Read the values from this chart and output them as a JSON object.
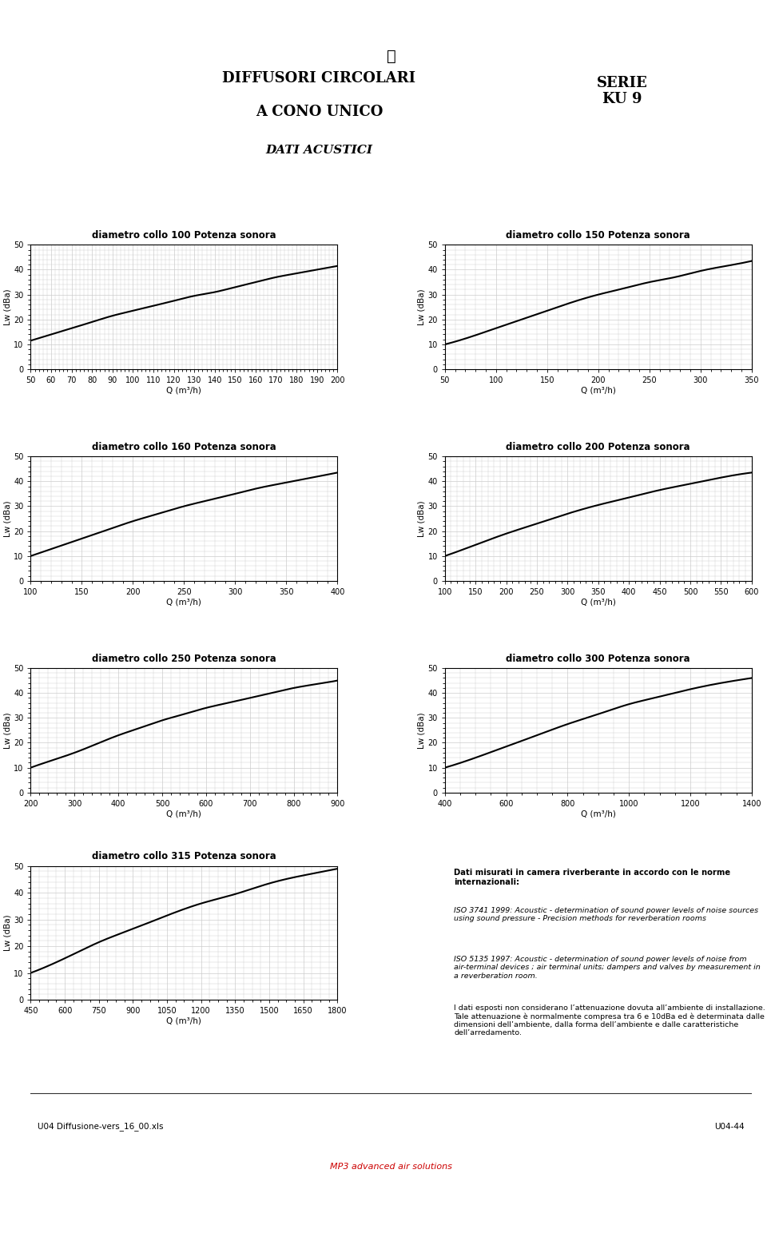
{
  "title_line1": "DIFFUSORI CIRCOLARI",
  "title_line2": "A CONO UNICO",
  "title_line3": "DATI ACUSTICI",
  "serie_label": "SERIE\nKU 9",
  "bg_color": "#ffffff",
  "charts": [
    {
      "title": "diametro collo 100 Potenza sonora",
      "xlabel": "Q (m³/h)",
      "ylabel": "Lw (dBa)",
      "xlim": [
        50,
        200
      ],
      "ylim": [
        0,
        50
      ],
      "xticks": [
        50,
        60,
        70,
        80,
        90,
        100,
        110,
        120,
        130,
        140,
        150,
        160,
        170,
        180,
        190,
        200
      ],
      "yticks": [
        0,
        10,
        20,
        30,
        40,
        50
      ],
      "x": [
        50,
        60,
        70,
        80,
        90,
        100,
        110,
        120,
        130,
        140,
        150,
        160,
        170,
        180,
        190,
        200
      ],
      "y": [
        11.5,
        14.0,
        16.5,
        19.0,
        21.5,
        23.5,
        25.5,
        27.5,
        29.5,
        31.0,
        33.0,
        35.0,
        37.0,
        38.5,
        40.0,
        41.5
      ]
    },
    {
      "title": "diametro collo 150 Potenza sonora",
      "xlabel": "Q (m³/h)",
      "ylabel": "Lw (dBa)",
      "xlim": [
        50,
        350
      ],
      "ylim": [
        0,
        50
      ],
      "xticks": [
        50,
        100,
        150,
        200,
        250,
        300,
        350
      ],
      "yticks": [
        0,
        10,
        20,
        30,
        40,
        50
      ],
      "x": [
        50,
        75,
        100,
        125,
        150,
        175,
        200,
        225,
        250,
        275,
        300,
        325,
        350
      ],
      "y": [
        10.0,
        13.0,
        16.5,
        20.0,
        23.5,
        27.0,
        30.0,
        32.5,
        35.0,
        37.0,
        39.5,
        41.5,
        43.5
      ]
    },
    {
      "title": "diametro collo 160 Potenza sonora",
      "xlabel": "Q (m³/h)",
      "ylabel": "Lw (dBa)",
      "xlim": [
        100,
        400
      ],
      "ylim": [
        0,
        50
      ],
      "xticks": [
        100,
        150,
        200,
        250,
        300,
        350,
        400
      ],
      "yticks": [
        0,
        10,
        20,
        30,
        40,
        50
      ],
      "x": [
        100,
        125,
        150,
        175,
        200,
        225,
        250,
        275,
        300,
        325,
        350,
        375,
        400
      ],
      "y": [
        10.0,
        13.5,
        17.0,
        20.5,
        24.0,
        27.0,
        30.0,
        32.5,
        35.0,
        37.5,
        39.5,
        41.5,
        43.5
      ]
    },
    {
      "title": "diametro collo 200 Potenza sonora",
      "xlabel": "Q (m³/h)",
      "ylabel": "Lw (dBa)",
      "xlim": [
        100,
        600
      ],
      "ylim": [
        0,
        50
      ],
      "xticks": [
        100,
        150,
        200,
        250,
        300,
        350,
        400,
        450,
        500,
        550,
        600
      ],
      "yticks": [
        0,
        10,
        20,
        30,
        40,
        50
      ],
      "x": [
        100,
        150,
        200,
        250,
        300,
        350,
        400,
        450,
        500,
        550,
        600
      ],
      "y": [
        10.0,
        14.5,
        19.0,
        23.0,
        27.0,
        30.5,
        33.5,
        36.5,
        39.0,
        41.5,
        43.5
      ]
    },
    {
      "title": "diametro collo 250 Potenza sonora",
      "xlabel": "Q (m³/h)",
      "ylabel": "Lw (dBa)",
      "xlim": [
        200,
        900
      ],
      "ylim": [
        0,
        50
      ],
      "xticks": [
        200,
        300,
        400,
        500,
        600,
        700,
        800,
        900
      ],
      "yticks": [
        0,
        10,
        20,
        30,
        40,
        50
      ],
      "x": [
        200,
        250,
        300,
        350,
        400,
        450,
        500,
        550,
        600,
        650,
        700,
        750,
        800,
        850,
        900
      ],
      "y": [
        10.0,
        13.0,
        16.0,
        19.5,
        23.0,
        26.0,
        29.0,
        31.5,
        34.0,
        36.0,
        38.0,
        40.0,
        42.0,
        43.5,
        45.0
      ]
    },
    {
      "title": "diametro collo 300 Potenza sonora",
      "xlabel": "Q (m³/h)",
      "ylabel": "Lw (dBa)",
      "xlim": [
        400,
        1400
      ],
      "ylim": [
        0,
        50
      ],
      "xticks": [
        400,
        600,
        800,
        1000,
        1200,
        1400
      ],
      "yticks": [
        0,
        10,
        20,
        30,
        40,
        50
      ],
      "x": [
        400,
        500,
        600,
        700,
        800,
        900,
        1000,
        1100,
        1200,
        1300,
        1400
      ],
      "y": [
        10.0,
        14.0,
        18.5,
        23.0,
        27.5,
        31.5,
        35.5,
        38.5,
        41.5,
        44.0,
        46.0
      ]
    },
    {
      "title": "diametro collo 315 Potenza sonora",
      "xlabel": "Q (m³/h)",
      "ylabel": "Lw (dBa)",
      "xlim": [
        450,
        1800
      ],
      "ylim": [
        0,
        50
      ],
      "xticks": [
        450,
        600,
        750,
        900,
        1050,
        1200,
        1350,
        1500,
        1650,
        1800
      ],
      "yticks": [
        0,
        10,
        20,
        30,
        40,
        50
      ],
      "x": [
        450,
        550,
        650,
        750,
        900,
        1050,
        1200,
        1350,
        1500,
        1650,
        1800
      ],
      "y": [
        10.0,
        13.5,
        17.5,
        21.5,
        26.5,
        31.5,
        36.0,
        39.5,
        43.5,
        46.5,
        49.0
      ]
    }
  ],
  "note_title": "Dati misurati in camera riverberante in accordo con le norme internazionali:",
  "note_iso1": "ISO 3741 1999: Acoustic - determination of sound power levels of noise sources using sound pressure - Precision methods for reverberation rooms",
  "note_iso2": "ISO 5135 1997: Acoustic - determination of sound power levels of noise from air-terminal devices ; air terminal units; dampers and valves by measurement in a reverberation room.",
  "note_dati": "I dati esposti non considerano l’attenuazione dovuta all’ambiente di installazione. Tale attenuazione è normalmente compresa tra 6 e 10dBa ed è determinata dalle dimensioni dell’ambiente, dalla forma dell’ambiente e dalle caratteristiche dell’arredamento.",
  "footer_left": "U04 Diffusione-vers_16_00.xls",
  "footer_right": "U04-44",
  "line_color": "#000000",
  "grid_color": "#cccccc",
  "axis_color": "#000000",
  "chart_bg": "#ffffff",
  "chart_border": "#000000"
}
